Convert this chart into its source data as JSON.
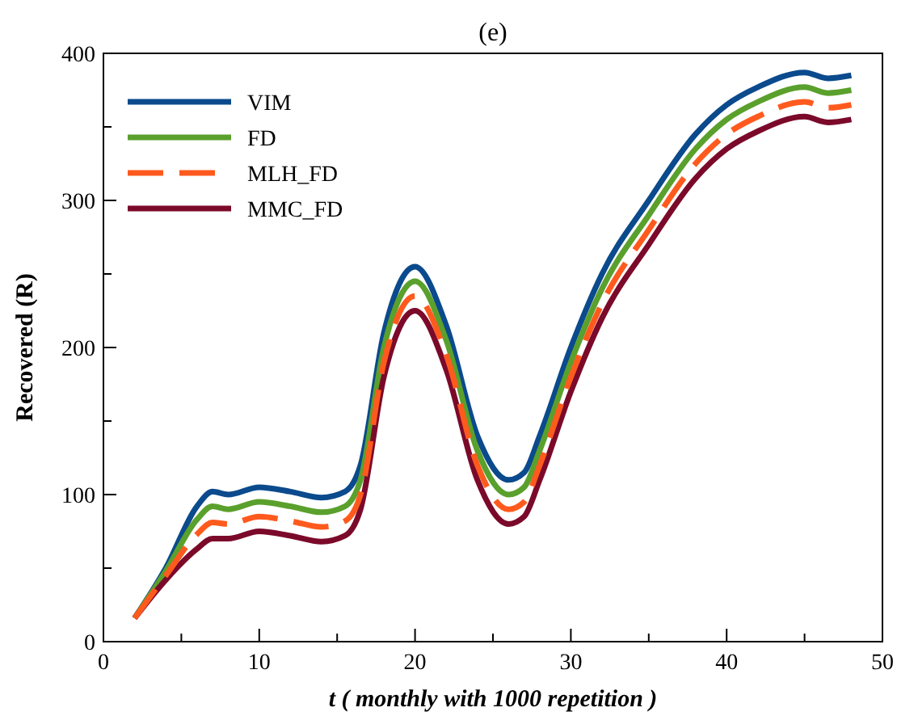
{
  "chart_data": {
    "type": "line",
    "title": "(e)",
    "xlabel": "t ( monthly with 1000 repetition )",
    "ylabel": "Recovered (R)",
    "x": [
      2,
      4,
      6,
      7,
      8,
      10,
      12,
      14,
      15.5,
      16.5,
      18,
      20,
      22,
      24,
      26,
      27,
      28,
      30,
      32,
      35,
      38,
      40,
      42,
      45,
      46.5,
      48
    ],
    "series": [
      {
        "name": "VIM",
        "color": "#0b4a8c",
        "values": [
          16,
          50,
          92,
          102,
          100,
          105,
          102,
          98,
          102,
          120,
          210,
          255,
          215,
          140,
          110,
          115,
          140,
          200,
          250,
          300,
          345,
          365,
          377,
          387,
          383,
          385
        ]
      },
      {
        "name": "FD",
        "color": "#5aa02c",
        "values": [
          16,
          48,
          83,
          92,
          90,
          95,
          92,
          88,
          92,
          110,
          200,
          245,
          205,
          130,
          100,
          105,
          130,
          190,
          240,
          290,
          335,
          355,
          367,
          377,
          373,
          375
        ]
      },
      {
        "name": "MLH_FD",
        "color": "#ff5a1e",
        "line_style": "dashed",
        "values": [
          16,
          45,
          73,
          81,
          80,
          85,
          82,
          78,
          82,
          100,
          190,
          235,
          195,
          120,
          90,
          95,
          120,
          180,
          230,
          280,
          325,
          345,
          357,
          367,
          363,
          365
        ]
      },
      {
        "name": "MMC_FD",
        "color": "#7b0a2a",
        "values": [
          16,
          42,
          63,
          70,
          70,
          75,
          72,
          68,
          72,
          90,
          180,
          225,
          185,
          110,
          80,
          85,
          110,
          170,
          220,
          270,
          315,
          335,
          347,
          357,
          353,
          355
        ]
      }
    ],
    "xlim": [
      0,
      50
    ],
    "xticks": [
      0,
      {
        "value": 5,
        "label": null
      },
      10,
      {
        "value": 15,
        "label": null
      },
      20,
      {
        "value": 25,
        "label": null
      },
      30,
      {
        "value": 35,
        "label": null
      },
      40,
      {
        "value": 45,
        "label": null
      },
      50
    ],
    "ylim": [
      0,
      400
    ],
    "yticks": [
      0,
      {
        "value": 50,
        "label": null
      },
      100,
      {
        "value": 150,
        "label": null
      },
      200,
      {
        "value": 250,
        "label": null
      },
      300,
      {
        "value": 350,
        "label": null
      },
      400
    ],
    "grid": false,
    "legend": "top left",
    "marker": "none",
    "line_style": "solid"
  }
}
